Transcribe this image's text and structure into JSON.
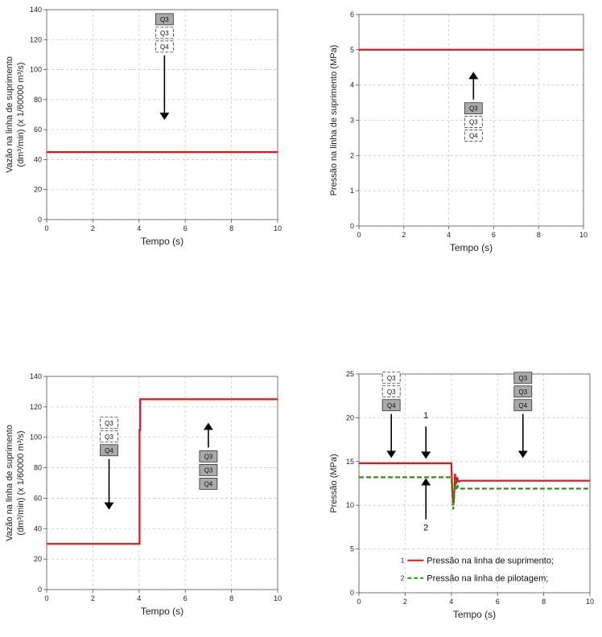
{
  "chart_data": [
    {
      "id": "c1",
      "type": "line",
      "xlabel": "Tempo (s)",
      "ylabel_lines": [
        "Vazão na linha de suprimento",
        "(dm³/min) (x 1/60000 m³/s)"
      ],
      "xlim": [
        0,
        10
      ],
      "ylim": [
        0,
        140
      ],
      "xticks": [
        0,
        2,
        4,
        6,
        8,
        10
      ],
      "yticks": [
        0,
        20,
        40,
        60,
        80,
        100,
        120,
        140
      ],
      "grid": true,
      "series": [
        {
          "color": "#e8101a",
          "dash": false,
          "x": [
            0,
            10
          ],
          "y": [
            45,
            45
          ]
        }
      ],
      "annotations": [
        {
          "kind": "valves",
          "labels": [
            "Q3",
            "Q3",
            "Q4"
          ],
          "shaded": [
            true,
            false,
            false
          ],
          "x": 5.1,
          "y": 124.5,
          "arrow": "down",
          "arrow_end_y": 67
        }
      ]
    },
    {
      "id": "c2",
      "type": "line",
      "xlabel": "Tempo (s)",
      "ylabel_lines": [
        "Pressão na linha de suprimento (MPa)"
      ],
      "xlim": [
        0,
        10
      ],
      "ylim": [
        0,
        6
      ],
      "xticks": [
        0,
        2,
        4,
        6,
        8,
        10
      ],
      "yticks": [
        0,
        1,
        2,
        3,
        4,
        5,
        6
      ],
      "grid": true,
      "series": [
        {
          "color": "#e8101a",
          "dash": false,
          "x": [
            0,
            10
          ],
          "y": [
            5,
            5
          ]
        }
      ],
      "annotations": [
        {
          "kind": "valves",
          "labels": [
            "Q3",
            "Q3",
            "Q4"
          ],
          "shaded": [
            true,
            false,
            false
          ],
          "x": 5.1,
          "y": 2.95,
          "arrow": "up",
          "arrow_end_y": 4.35
        }
      ]
    },
    {
      "id": "c3",
      "type": "line",
      "xlabel": "Tempo (s)",
      "ylabel_lines": [
        "Vazão na linha de suprimento",
        "(dm³/min) (x 1/60000 m³/s)"
      ],
      "xlim": [
        0,
        10
      ],
      "ylim": [
        0,
        140
      ],
      "xticks": [
        0,
        2,
        4,
        6,
        8,
        10
      ],
      "yticks": [
        0,
        20,
        40,
        60,
        80,
        100,
        120,
        140
      ],
      "grid": true,
      "series": [
        {
          "color": "#e8101a",
          "dash": false,
          "x": [
            0,
            4,
            4.02,
            4.02,
            4.05,
            4.05,
            10
          ],
          "y": [
            30,
            30,
            30,
            105,
            105,
            125,
            125
          ]
        }
      ],
      "annotations": [
        {
          "kind": "valves",
          "labels": [
            "Q3",
            "Q3",
            "Q4"
          ],
          "shaded": [
            false,
            false,
            true
          ],
          "x": 2.7,
          "y": 100.5,
          "arrow": "down",
          "arrow_end_y": 53
        },
        {
          "kind": "valves",
          "labels": [
            "Q3",
            "Q3",
            "Q4"
          ],
          "shaded": [
            true,
            true,
            true
          ],
          "x": 7.0,
          "y": 78.5,
          "arrow": "up",
          "arrow_end_y": 109
        }
      ]
    },
    {
      "id": "c4",
      "type": "line",
      "xlabel": "Tempo (s)",
      "ylabel_lines": [
        "Pressão (MPa)"
      ],
      "xlim": [
        0,
        10
      ],
      "ylim": [
        0,
        25
      ],
      "xticks": [
        0,
        2,
        4,
        6,
        8,
        10
      ],
      "yticks": [
        0,
        5,
        10,
        15,
        20,
        25
      ],
      "grid": true,
      "series": [
        {
          "name": "Pressão na linha de suprimento;",
          "marker": "1",
          "color": "#e8101a",
          "dash": false,
          "x": [
            0,
            4.0,
            4.04,
            4.08,
            4.12,
            4.16,
            4.2,
            4.25,
            4.3,
            4.4,
            10
          ],
          "y": [
            14.8,
            14.8,
            12.0,
            10.0,
            11.0,
            13.6,
            12.4,
            13.2,
            12.7,
            12.8,
            12.8
          ]
        },
        {
          "name": "Pressão na linha de pilotagem;",
          "marker": "2",
          "color": "#3a8a1a",
          "dash": true,
          "x": [
            0,
            4.0,
            4.04,
            4.08,
            4.12,
            4.16,
            4.2,
            4.28,
            4.35,
            10
          ],
          "y": [
            13.2,
            13.2,
            11.5,
            9.5,
            10.8,
            12.9,
            11.7,
            12.2,
            11.9,
            11.9
          ]
        }
      ],
      "annotations": [
        {
          "kind": "valves",
          "labels": [
            "Q3",
            "Q3",
            "Q4"
          ],
          "shaded": [
            false,
            false,
            true
          ],
          "x": 1.4,
          "y": 23.0,
          "arrow": "down",
          "arrow_end_y": 15.5
        },
        {
          "kind": "valves",
          "labels": [
            "Q3",
            "Q3",
            "Q4"
          ],
          "shaded": [
            true,
            true,
            true
          ],
          "x": 7.1,
          "y": 23.0,
          "arrow": "down",
          "arrow_end_y": 15.5
        },
        {
          "kind": "arrow_label",
          "label": "1",
          "x": 2.9,
          "y_from": 19.0,
          "y_to": 15.4,
          "label_y": 20.3
        },
        {
          "kind": "arrow_label",
          "label": "2",
          "x": 2.9,
          "y_from": 8.4,
          "y_to": 13.0,
          "label_y": 7.5
        }
      ],
      "legend_placement": "bottom-center"
    }
  ]
}
